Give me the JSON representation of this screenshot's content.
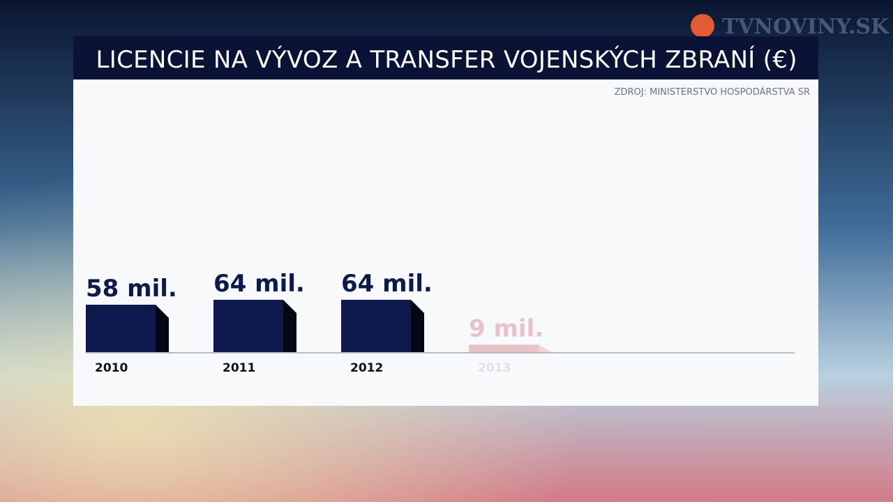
{
  "logo": "TVNOVINY.SK",
  "chart_data": {
    "type": "bar",
    "title": "LICENCIE NA VÝVOZ A TRANSFER VOJENSKÝCH ZBRANÍ (€)",
    "source": "ZDROJ: MINISTERSTVO HOSPODÁRSTVA SR",
    "categories": [
      "2010",
      "2011",
      "2012",
      "2013"
    ],
    "values": [
      58,
      64,
      64,
      9
    ],
    "value_labels": [
      "58 mil.",
      "64 mil.",
      "64 mil.",
      "9 mil."
    ],
    "colors": [
      "#0e1a4d",
      "#0e1a4d",
      "#0e1a4d",
      "#e9c2c8"
    ]
  }
}
